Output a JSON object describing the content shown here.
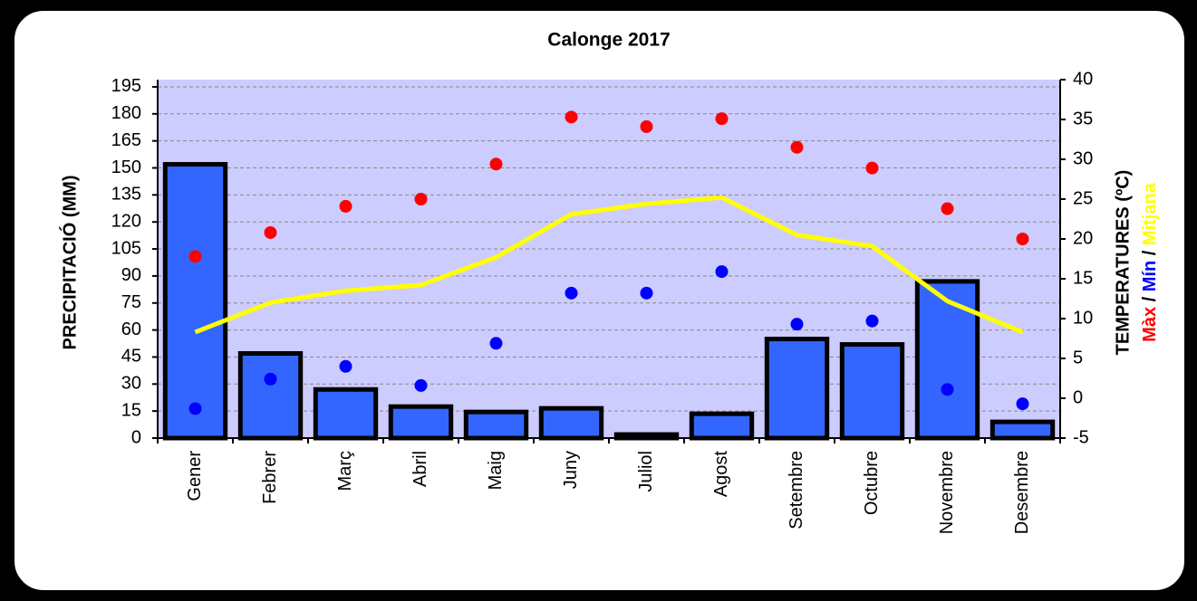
{
  "chart_data": {
    "type": "bar",
    "title": "Calonge 2017",
    "ylabel": "PRECIPITACIÓ (MM)",
    "y2label": "TEMPERATURES (ºC)",
    "y2label_separator": "/",
    "categories": [
      "Gener",
      "Febrer",
      "Març",
      "Abril",
      "Maig",
      "Juny",
      "Juliol",
      "Agost",
      "Setembre",
      "Octubre",
      "Novembre",
      "Desembre"
    ],
    "series": [
      {
        "type": "bar",
        "color": "#3366ff",
        "values": [
          152,
          47,
          27,
          17.5,
          14.5,
          16.5,
          2,
          13.5,
          55,
          52,
          87,
          9
        ]
      },
      {
        "name": "Màx",
        "type": "scatter",
        "axis": "y2",
        "color": "#ff0000",
        "values": [
          17.8,
          20.8,
          24.1,
          25,
          29.4,
          35.3,
          34.1,
          35.1,
          31.5,
          28.9,
          23.8,
          20
        ]
      },
      {
        "name": "Mín",
        "type": "scatter",
        "axis": "y2",
        "color": "#0000ff",
        "values": [
          -1.3,
          2.4,
          4,
          1.6,
          6.9,
          13.2,
          13.2,
          15.9,
          9.3,
          9.7,
          1.1,
          -0.7
        ]
      },
      {
        "name": "Mitjana",
        "type": "line",
        "axis": "y2",
        "color": "#ffff00",
        "values": [
          8.3,
          12,
          13.5,
          14.2,
          17.7,
          23.1,
          24.4,
          25.2,
          20.5,
          19.1,
          12.2,
          8.3
        ]
      }
    ],
    "ylim": [
      0,
      199
    ],
    "yticks": [
      0,
      15,
      30,
      45,
      60,
      75,
      90,
      105,
      120,
      135,
      150,
      165,
      180,
      195
    ],
    "y2lim": [
      -5,
      40
    ],
    "y2ticks": [
      -5,
      0,
      5,
      10,
      15,
      20,
      25,
      30,
      35,
      40
    ],
    "grid": true,
    "plot_background": "#ccccff"
  }
}
